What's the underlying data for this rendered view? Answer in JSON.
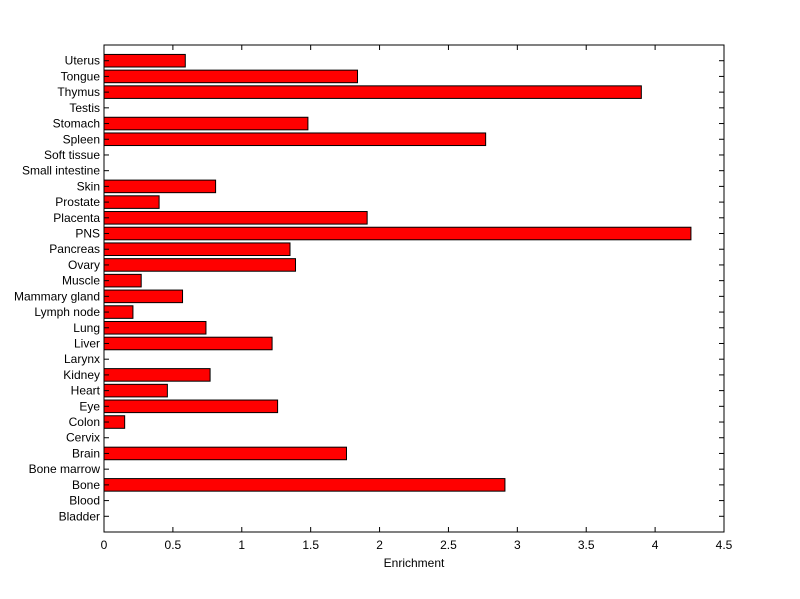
{
  "chart_data": {
    "type": "bar",
    "orientation": "horizontal",
    "xlabel": "Enrichment",
    "ylabel": "",
    "title": "",
    "xlim": [
      0,
      4.5
    ],
    "xticks": [
      "0",
      "0.5",
      "1",
      "1.5",
      "2",
      "2.5",
      "3",
      "3.5",
      "4",
      "4.5"
    ],
    "grid": false,
    "bar_color": "#ff0000",
    "categories": [
      "Bladder",
      "Blood",
      "Bone",
      "Bone marrow",
      "Brain",
      "Cervix",
      "Colon",
      "Eye",
      "Heart",
      "Kidney",
      "Larynx",
      "Liver",
      "Lung",
      "Lymph node",
      "Mammary gland",
      "Muscle",
      "Ovary",
      "Pancreas",
      "PNS",
      "Placenta",
      "Prostate",
      "Skin",
      "Small intestine",
      "Soft tissue",
      "Spleen",
      "Stomach",
      "Testis",
      "Thymus",
      "Tongue",
      "Uterus"
    ],
    "values": [
      0,
      0,
      2.91,
      0,
      1.76,
      0,
      0.15,
      1.26,
      0.46,
      0.77,
      0,
      1.22,
      0.74,
      0.21,
      0.57,
      0.27,
      1.39,
      1.35,
      4.26,
      1.91,
      0.4,
      0.81,
      0,
      0,
      2.77,
      1.48,
      0,
      3.9,
      1.84,
      0.59
    ]
  }
}
